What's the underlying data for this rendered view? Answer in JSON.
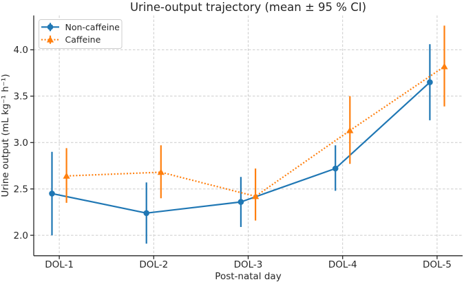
{
  "chart_data": {
    "type": "line",
    "title": "Urine-output trajectory (mean ± 95 % CI)",
    "xlabel": "Post-natal day",
    "ylabel": "Urine output (mL kg⁻¹ h⁻¹)",
    "categories": [
      "DOL-1",
      "DOL-2",
      "DOL-3",
      "DOL-4",
      "DOL-5"
    ],
    "yticks": [
      2.0,
      2.5,
      3.0,
      3.5,
      4.0
    ],
    "ytick_labels": [
      "2.0",
      "2.5",
      "3.0",
      "3.5",
      "4.0"
    ],
    "ylim": [
      1.78,
      4.37
    ],
    "xlim_index": [
      -0.27,
      4.27
    ],
    "grid": true,
    "error_bar_caps": false,
    "legend_position": "upper-left",
    "series": [
      {
        "name": "Non-caffeine",
        "color": "#1f77b4",
        "line_style": "solid",
        "marker": "circle",
        "x_offset": -0.077,
        "means": [
          2.45,
          2.24,
          2.36,
          2.72,
          3.65
        ],
        "ci_low": [
          2.0,
          1.91,
          2.09,
          2.48,
          3.24
        ],
        "ci_high": [
          2.9,
          2.57,
          2.63,
          2.97,
          4.06
        ]
      },
      {
        "name": "Caffeine",
        "color": "#ff7f0e",
        "line_style": "dotted",
        "marker": "triangle-up",
        "x_offset": 0.077,
        "means": [
          2.64,
          2.68,
          2.42,
          3.13,
          3.82
        ],
        "ci_low": [
          2.35,
          2.4,
          2.16,
          2.77,
          3.39
        ],
        "ci_high": [
          2.94,
          2.97,
          2.72,
          3.5,
          4.26
        ]
      }
    ]
  },
  "styles": {
    "background": "#ffffff",
    "grid_color": "#cccccc",
    "axis_color": "#262626",
    "text_color": "#262626",
    "legend_border": "#cccccc",
    "legend_fill": "#ffffff"
  }
}
